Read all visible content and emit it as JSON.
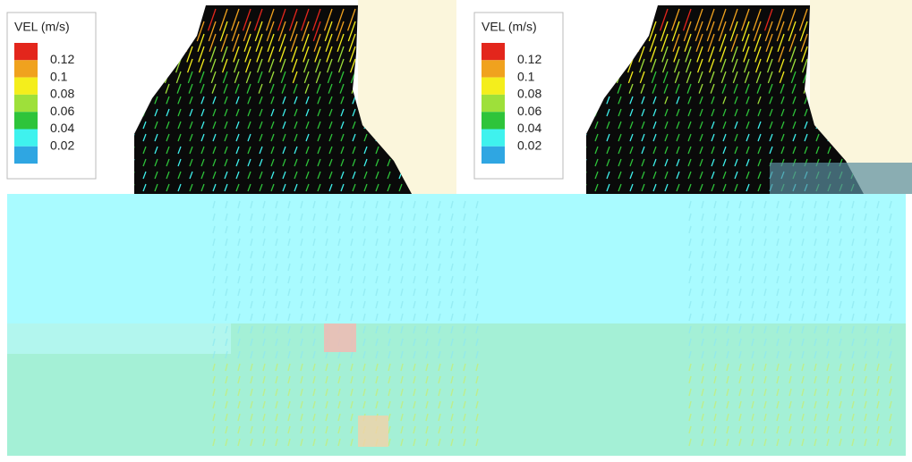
{
  "panels": [
    {
      "legend": {
        "title": "VEL (m/s)",
        "labels": [
          "0.12",
          "0.1",
          "0.08",
          "0.06",
          "0.04",
          "0.02"
        ],
        "colors": [
          "#e3261c",
          "#f0a21e",
          "#f4ee1c",
          "#9ee03a",
          "#2ec43a",
          "#3ff2ee",
          "#2fa6e2"
        ]
      }
    },
    {
      "legend": {
        "title": "VEL (m/s)",
        "labels": [
          "0.12",
          "0.1",
          "0.08",
          "0.06",
          "0.04",
          "0.02"
        ],
        "colors": [
          "#e3261c",
          "#f0a21e",
          "#f4ee1c",
          "#9ee03a",
          "#2ec43a",
          "#3ff2ee",
          "#2fa6e2"
        ]
      }
    }
  ]
}
